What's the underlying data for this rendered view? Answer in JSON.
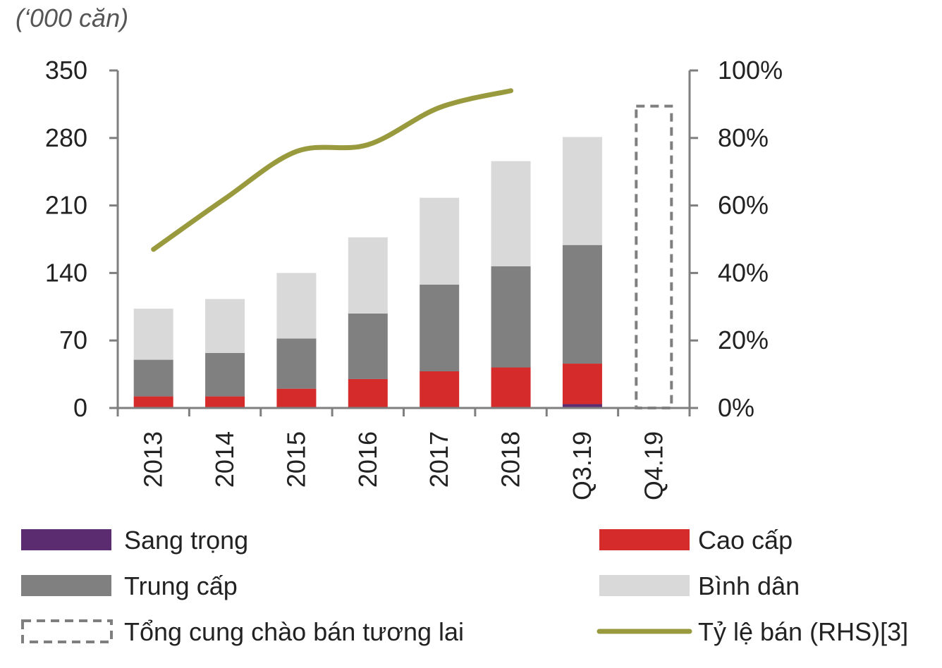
{
  "chart_data": {
    "type": "bar",
    "unit_label": "(‘000 căn)",
    "categories": [
      "2013",
      "2014",
      "2015",
      "2016",
      "2017",
      "2018",
      "Q3.19",
      "Q4.19"
    ],
    "ylim_left": [
      0,
      350
    ],
    "yticks_left": [
      "0",
      "70",
      "140",
      "210",
      "280",
      "350"
    ],
    "ylim_right": [
      0,
      100
    ],
    "yticks_right": [
      "0%",
      "20%",
      "40%",
      "60%",
      "80%",
      "100%"
    ],
    "series": [
      {
        "name": "Sang trọng",
        "color": "#5b2c6f",
        "values": [
          0,
          0,
          0,
          0,
          0,
          0,
          4,
          null
        ]
      },
      {
        "name": "Cao cấp",
        "color": "#d52b2b",
        "values": [
          12,
          12,
          20,
          30,
          38,
          42,
          42,
          null
        ]
      },
      {
        "name": "Trung cấp",
        "color": "#808080",
        "values": [
          38,
          45,
          52,
          68,
          90,
          105,
          123,
          null
        ]
      },
      {
        "name": "Bình dân",
        "color": "#d9d9d9",
        "values": [
          53,
          56,
          68,
          79,
          90,
          109,
          112,
          null
        ]
      }
    ],
    "future_supply": {
      "name": "Tổng cung chào bán tương lai",
      "color": "#7f7f7f",
      "category": "Q4.19",
      "value": 313
    },
    "line_series": {
      "name": "Tỷ lệ bán (RHS)[3]",
      "color": "#999a3e",
      "axis": "right",
      "values": [
        47,
        62,
        76,
        78,
        89,
        94,
        null,
        null
      ]
    },
    "legend": {
      "position": "bottom",
      "items": [
        {
          "label": "Sang trọng",
          "color": "#5b2c6f",
          "kind": "bar"
        },
        {
          "label": "Cao cấp",
          "color": "#d52b2b",
          "kind": "bar"
        },
        {
          "label": "Trung cấp",
          "color": "#808080",
          "kind": "bar"
        },
        {
          "label": "Bình dân",
          "color": "#d9d9d9",
          "kind": "bar"
        },
        {
          "label": "Tổng cung chào bán tương lai",
          "color": "#7f7f7f",
          "kind": "dashed"
        },
        {
          "label": "Tỷ lệ bán (RHS)[3]",
          "color": "#999a3e",
          "kind": "line"
        }
      ]
    },
    "grid": false
  }
}
